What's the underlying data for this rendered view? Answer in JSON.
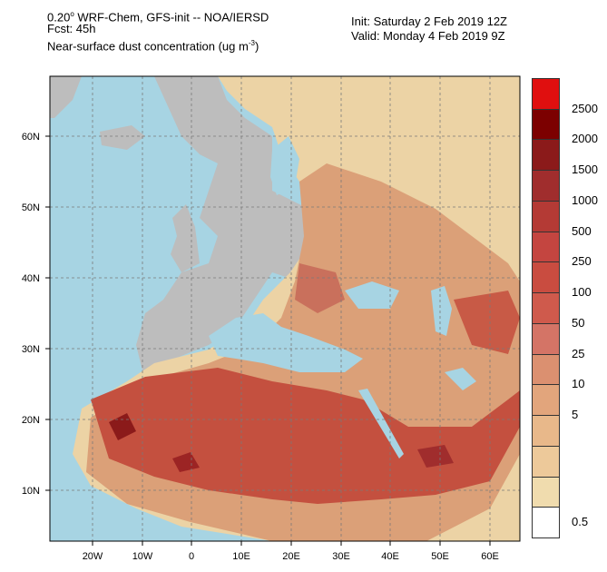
{
  "header": {
    "title_line1_prefix": "0.20",
    "title_line1_suffix": " WRF-Chem, GFS-init -- NOA/IERSD",
    "forecast": "Fcst: 45h",
    "variable_prefix": "Near-surface dust concentration (ug m",
    "variable_exponent": "-3",
    "variable_suffix": ")",
    "init": "Init: Saturday 2 Feb 2019  12Z",
    "valid": "Valid: Monday 4 Feb 2019  9Z"
  },
  "map": {
    "ocean_color": "#a7d4e3",
    "land_nodata_color": "#bdbdbd",
    "lat_labels": [
      "60N",
      "50N",
      "40N",
      "30N",
      "20N",
      "10N"
    ],
    "lon_labels": [
      "20W",
      "10W",
      "0",
      "10E",
      "20E",
      "30E",
      "40E",
      "50E",
      "60E"
    ]
  },
  "colorbar": {
    "colors": [
      "#e00f0f",
      "#7c0000",
      "#8b1a1a",
      "#a02d2d",
      "#b43a35",
      "#c44540",
      "#c94c40",
      "#cf5a4c",
      "#d47466",
      "#db9070",
      "#e2a57c",
      "#e8b88a",
      "#edc99a",
      "#f0dcae",
      "#ffffff"
    ],
    "labels": [
      "2500",
      "2000",
      "1500",
      "1000",
      "500",
      "250",
      "100",
      "50",
      "25",
      "10",
      "5",
      "0.5"
    ]
  }
}
